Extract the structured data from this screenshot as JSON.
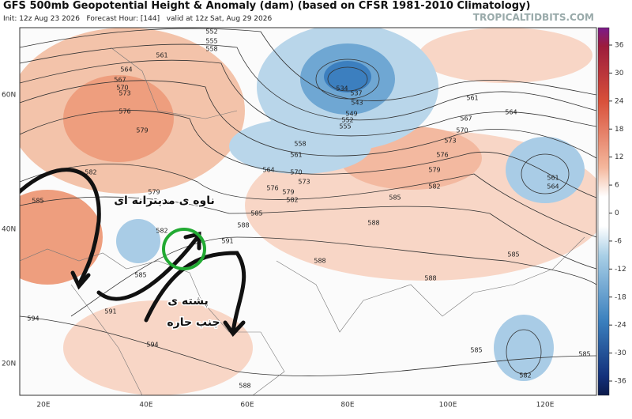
{
  "header": {
    "title": "GFS 500mb Geopotential Height & Anomaly (dam) (based on CFSR 1981-2010 Climatology)",
    "subtitle": "Init: 12z Aug 23 2026   Forecast Hour: [144]   valid at 12z Sat, Aug 29 2026",
    "watermark": "TROPICALTIDBITS.COM"
  },
  "colorbar": {
    "ticks": [
      36,
      30,
      24,
      18,
      12,
      6,
      0,
      -6,
      -12,
      -18,
      -24,
      -30,
      -36
    ]
  },
  "axes": {
    "longitudes": [
      "20E",
      "40E",
      "60E",
      "80E",
      "100E",
      "120E"
    ],
    "latitudes": [
      "60N",
      "40N",
      "20N"
    ]
  },
  "contour_labels": [
    552,
    555,
    558,
    561,
    564,
    567,
    570,
    573,
    576,
    579,
    582,
    585,
    579,
    534,
    537,
    543,
    549,
    552,
    555,
    558,
    561,
    564,
    570,
    573,
    576,
    579,
    582,
    585,
    585,
    588,
    591,
    588,
    582,
    579,
    576,
    573,
    570,
    567,
    564,
    561,
    561,
    564,
    585,
    588,
    588,
    591,
    594,
    594,
    585,
    582,
    585,
    588,
    585,
    582
  ],
  "annotations": {
    "trough": "ناوه ی مدیترانه ای",
    "ridge_line1": "پشته ی",
    "ridge_line2": "جنب حاره"
  }
}
